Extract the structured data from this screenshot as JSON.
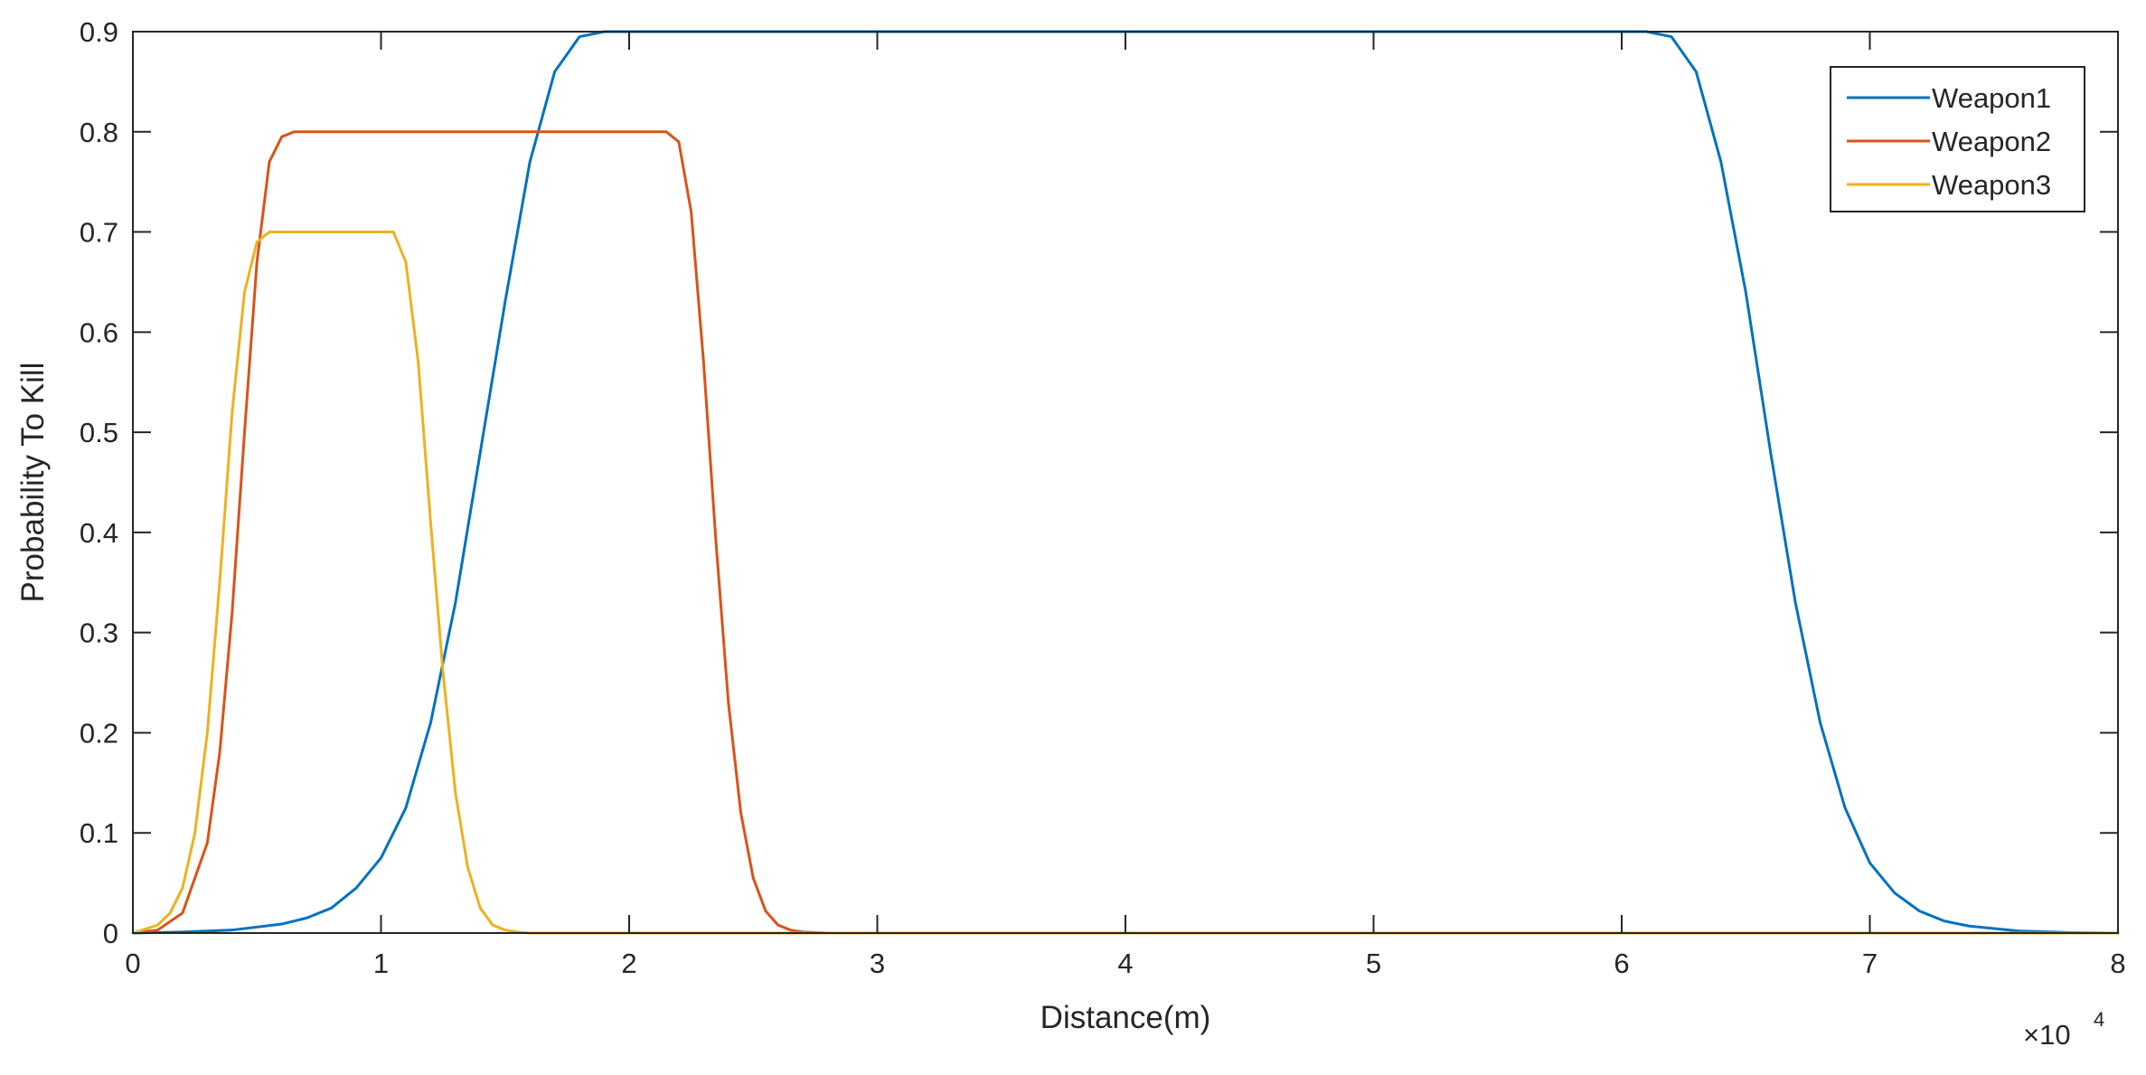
{
  "chart_data": {
    "type": "line",
    "xlabel": "Distance(m)",
    "ylabel": "Probability To Kill",
    "xlim": [
      0,
      80000
    ],
    "ylim": [
      0,
      0.9
    ],
    "x_ticks": [
      0,
      10000,
      20000,
      30000,
      40000,
      50000,
      60000,
      70000,
      80000
    ],
    "x_tick_labels": [
      "0",
      "1",
      "2",
      "3",
      "4",
      "5",
      "6",
      "7",
      "8"
    ],
    "x_exponent_label": {
      "base": "×10",
      "power": "4"
    },
    "y_ticks": [
      0,
      0.1,
      0.2,
      0.3,
      0.4,
      0.5,
      0.6,
      0.7,
      0.8,
      0.9
    ],
    "y_tick_labels": [
      "0",
      "0.1",
      "0.2",
      "0.3",
      "0.4",
      "0.5",
      "0.6",
      "0.7",
      "0.8",
      "0.9"
    ],
    "grid": false,
    "box": true,
    "legend_position": "top-right",
    "series": [
      {
        "name": "Weapon1",
        "color": "#0072BD",
        "x": [
          0,
          2000,
          4000,
          6000,
          7000,
          8000,
          9000,
          10000,
          11000,
          12000,
          13000,
          14000,
          15000,
          16000,
          17000,
          18000,
          19000,
          20000,
          30000,
          40000,
          50000,
          60000,
          61000,
          62000,
          63000,
          64000,
          65000,
          66000,
          67000,
          68000,
          69000,
          70000,
          71000,
          72000,
          73000,
          74000,
          76000,
          78000,
          80000
        ],
        "y": [
          0,
          0.001,
          0.003,
          0.009,
          0.015,
          0.025,
          0.045,
          0.075,
          0.125,
          0.21,
          0.33,
          0.48,
          0.63,
          0.77,
          0.86,
          0.895,
          0.9,
          0.9,
          0.9,
          0.9,
          0.9,
          0.9,
          0.9,
          0.895,
          0.86,
          0.77,
          0.64,
          0.48,
          0.33,
          0.21,
          0.125,
          0.07,
          0.04,
          0.022,
          0.012,
          0.007,
          0.002,
          0.0005,
          0
        ]
      },
      {
        "name": "Weapon2",
        "color": "#D95319",
        "x": [
          0,
          1000,
          2000,
          3000,
          3500,
          4000,
          4500,
          5000,
          5500,
          6000,
          6500,
          7000,
          10000,
          15000,
          20000,
          21500,
          22000,
          22500,
          23000,
          23500,
          24000,
          24500,
          25000,
          25500,
          26000,
          26500,
          27000,
          28000,
          80000
        ],
        "y": [
          0,
          0.003,
          0.02,
          0.09,
          0.18,
          0.32,
          0.5,
          0.67,
          0.77,
          0.795,
          0.8,
          0.8,
          0.8,
          0.8,
          0.8,
          0.8,
          0.79,
          0.72,
          0.57,
          0.39,
          0.23,
          0.12,
          0.055,
          0.022,
          0.008,
          0.003,
          0.001,
          0,
          0
        ]
      },
      {
        "name": "Weapon3",
        "color": "#EDB120",
        "x": [
          0,
          1000,
          1500,
          2000,
          2500,
          3000,
          3500,
          4000,
          4500,
          5000,
          5500,
          6000,
          8000,
          10000,
          10500,
          11000,
          11500,
          12000,
          12500,
          13000,
          13500,
          14000,
          14500,
          15000,
          15500,
          16000,
          80000
        ],
        "y": [
          0,
          0.008,
          0.02,
          0.045,
          0.1,
          0.2,
          0.35,
          0.52,
          0.64,
          0.69,
          0.7,
          0.7,
          0.7,
          0.7,
          0.7,
          0.67,
          0.57,
          0.41,
          0.26,
          0.14,
          0.065,
          0.025,
          0.008,
          0.003,
          0.001,
          0,
          0
        ]
      }
    ]
  }
}
